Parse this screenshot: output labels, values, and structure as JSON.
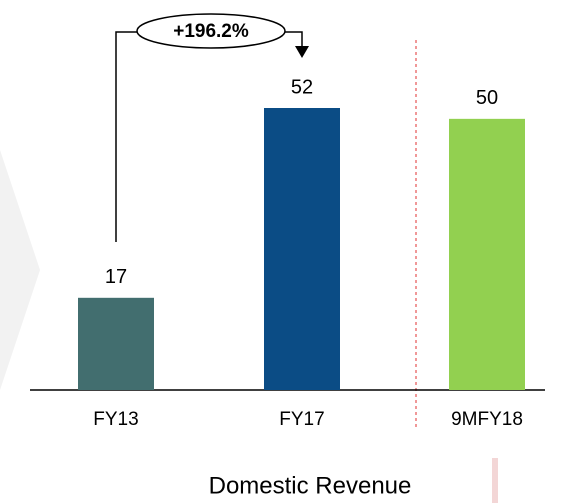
{
  "chart_data": {
    "type": "bar",
    "title": "Domestic Revenue",
    "categories": [
      "FY13",
      "FY17",
      "9MFY18"
    ],
    "values": [
      17,
      52,
      50
    ],
    "colors": [
      "#426e6f",
      "#0b4c85",
      "#92d050"
    ],
    "annotation": "+196.2%"
  }
}
